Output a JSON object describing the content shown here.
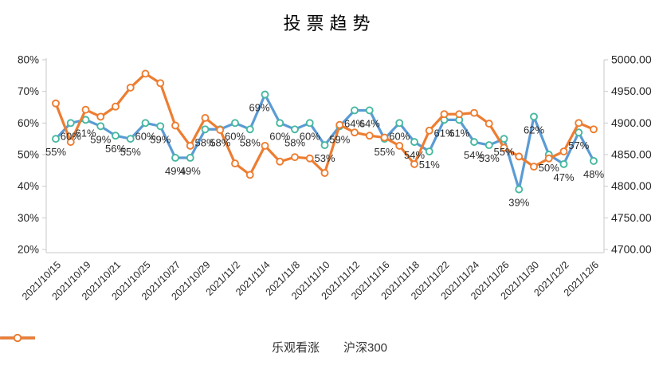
{
  "title": "投票趋势",
  "chart_data": {
    "type": "line",
    "title": "投票趋势",
    "point_count": 37,
    "x_label_every": 2,
    "x_tick_labels": [
      "2021/10/15",
      "2021/10/19",
      "2021/10/21",
      "2021/10/25",
      "2021/10/27",
      "2021/10/29",
      "2021/11/2",
      "2021/11/4",
      "2021/11/8",
      "2021/11/10",
      "2021/11/12",
      "2021/11/16",
      "2021/11/18",
      "2021/11/22",
      "2021/11/24",
      "2021/11/26",
      "2021/11/30",
      "2021/12/2",
      "2021/12/6"
    ],
    "left_axis": {
      "min": 20,
      "max": 80,
      "tick_step": 10,
      "unit": "%",
      "tick_labels": [
        "80%",
        "70%",
        "60%",
        "50%",
        "40%",
        "30%",
        "20%"
      ]
    },
    "right_axis": {
      "min": 4700,
      "max": 5000,
      "tick_step": 50,
      "tick_labels": [
        "5000.00",
        "4950.00",
        "4900.00",
        "4850.00",
        "4800.00",
        "4750.00",
        "4700.00"
      ]
    },
    "grid": false,
    "legend_position": "bottom",
    "series": [
      {
        "name": "乐观看涨",
        "axis": "left",
        "color": "#5B9BD5",
        "marker_ring_color": "#47B8A0",
        "data_labels": true,
        "label_suffix": "%",
        "values": [
          55,
          60,
          61,
          59,
          56,
          55,
          60,
          59,
          49,
          49,
          58,
          58,
          60,
          58,
          69,
          60,
          58,
          60,
          53,
          59,
          64,
          64,
          55,
          60,
          54,
          51,
          61,
          61,
          54,
          53,
          55,
          39,
          62,
          50,
          47,
          57,
          48
        ]
      },
      {
        "name": "沪深300",
        "axis": "right",
        "color": "#ED7D31",
        "marker_ring_color": "#ED7D31",
        "data_labels": false,
        "values_estimated_from_pixels": true,
        "values": [
          4931,
          4870,
          4921,
          4910,
          4926,
          4956,
          4978,
          4963,
          4896,
          4864,
          4908,
          4889,
          4836,
          4818,
          4864,
          4839,
          4846,
          4844,
          4821,
          4897,
          4885,
          4880,
          4877,
          4864,
          4835,
          4888,
          4914,
          4914,
          4916,
          4899,
          4861,
          4847,
          4831,
          4844,
          4855,
          4900,
          4890
        ]
      }
    ]
  },
  "colors": {
    "background": "#FFFFFF",
    "axis_line": "#C9C9C9",
    "axis_text": "#262626",
    "data_label_text": "#2B2B2B"
  }
}
